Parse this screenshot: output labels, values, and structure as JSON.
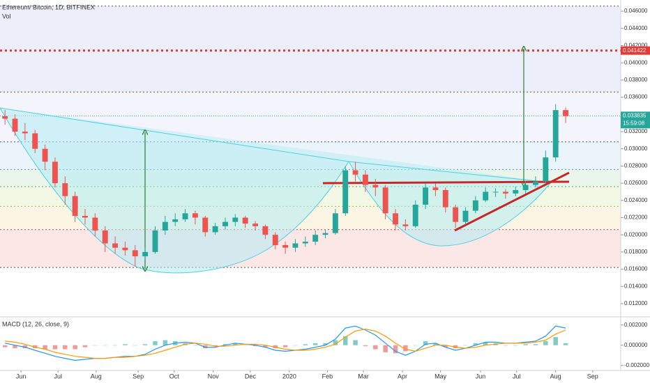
{
  "chart_data": [
    {
      "type": "candlestick",
      "title": "Ethereum/ Bitcoin, 1D, BITFINEX",
      "volume_label": "Vol",
      "open": [
        0.0338,
        0.0335,
        0.032,
        0.0318,
        0.03,
        0.0285,
        0.026,
        0.0245,
        0.0222,
        0.022,
        0.0205,
        0.019,
        0.0185,
        0.0182,
        0.0175,
        0.018,
        0.0205,
        0.0215,
        0.0218,
        0.0225,
        0.022,
        0.0203,
        0.021,
        0.0215,
        0.022,
        0.0213,
        0.021,
        0.02,
        0.0188,
        0.0185,
        0.019,
        0.0192,
        0.02,
        0.0202,
        0.0225,
        0.0275,
        0.027,
        0.0258,
        0.0255,
        0.0225,
        0.0212,
        0.021,
        0.0235,
        0.0255,
        0.0252,
        0.0232,
        0.0215,
        0.0228,
        0.024,
        0.025,
        0.025,
        0.0248,
        0.0252,
        0.0258,
        0.0262,
        0.029,
        0.0345
      ],
      "high": [
        0.0345,
        0.034,
        0.033,
        0.0322,
        0.0305,
        0.029,
        0.0268,
        0.025,
        0.023,
        0.0225,
        0.021,
        0.0198,
        0.0192,
        0.0188,
        0.0186,
        0.021,
        0.0222,
        0.0225,
        0.023,
        0.0228,
        0.0222,
        0.0214,
        0.022,
        0.0224,
        0.0222,
        0.0216,
        0.0212,
        0.0203,
        0.0192,
        0.0195,
        0.0198,
        0.0205,
        0.0206,
        0.023,
        0.028,
        0.0285,
        0.0275,
        0.0265,
        0.0258,
        0.023,
        0.0218,
        0.024,
        0.026,
        0.026,
        0.0255,
        0.0235,
        0.0232,
        0.0245,
        0.0255,
        0.0254,
        0.0253,
        0.0256,
        0.0262,
        0.0268,
        0.0298,
        0.0352,
        0.0348
      ],
      "low": [
        0.0328,
        0.0315,
        0.031,
        0.0295,
        0.0275,
        0.0255,
        0.0235,
        0.0215,
        0.0212,
        0.0198,
        0.018,
        0.0178,
        0.0176,
        0.0163,
        0.017,
        0.0178,
        0.02,
        0.021,
        0.0215,
        0.0212,
        0.0198,
        0.02,
        0.0206,
        0.021,
        0.0208,
        0.0205,
        0.0195,
        0.0183,
        0.0178,
        0.018,
        0.0186,
        0.0188,
        0.0196,
        0.02,
        0.0222,
        0.0262,
        0.025,
        0.0245,
        0.0218,
        0.0205,
        0.0205,
        0.0208,
        0.023,
        0.0245,
        0.0226,
        0.0208,
        0.0212,
        0.0225,
        0.0238,
        0.0244,
        0.0242,
        0.0245,
        0.0248,
        0.0255,
        0.026,
        0.0285,
        0.033
      ],
      "close": [
        0.0335,
        0.032,
        0.0318,
        0.03,
        0.0285,
        0.026,
        0.0245,
        0.0222,
        0.022,
        0.0205,
        0.019,
        0.0185,
        0.0182,
        0.0175,
        0.018,
        0.0205,
        0.0215,
        0.0218,
        0.0225,
        0.022,
        0.0203,
        0.021,
        0.0215,
        0.022,
        0.0213,
        0.021,
        0.02,
        0.0188,
        0.0185,
        0.019,
        0.0192,
        0.02,
        0.0202,
        0.0225,
        0.0275,
        0.027,
        0.0258,
        0.0255,
        0.0225,
        0.0212,
        0.021,
        0.0235,
        0.0255,
        0.0252,
        0.0232,
        0.0215,
        0.0228,
        0.024,
        0.025,
        0.025,
        0.0248,
        0.0252,
        0.0258,
        0.0262,
        0.029,
        0.0345,
        0.0338
      ],
      "up_color": "#26a69a",
      "down_color": "#ef5350",
      "xlim": [
        -0.5,
        61.5
      ],
      "xticks": [
        {
          "value": 1.6,
          "label": "Jun"
        },
        {
          "value": 5.3,
          "label": "Jul"
        },
        {
          "value": 9.1,
          "label": "Aug"
        },
        {
          "value": 13.3,
          "label": "Sep"
        },
        {
          "value": 16.9,
          "label": "Oct"
        },
        {
          "value": 20.8,
          "label": "Nov"
        },
        {
          "value": 24.5,
          "label": "Dec"
        },
        {
          "value": 28.4,
          "label": "2020"
        },
        {
          "value": 32.2,
          "label": "Feb"
        },
        {
          "value": 35.8,
          "label": "Mar"
        },
        {
          "value": 39.7,
          "label": "Apr"
        },
        {
          "value": 43.5,
          "label": "May"
        },
        {
          "value": 47.5,
          "label": "Jun"
        },
        {
          "value": 51.1,
          "label": "Jul"
        },
        {
          "value": 55.0,
          "label": "Aug"
        },
        {
          "value": 58.7,
          "label": "Sep"
        }
      ],
      "ylim": [
        0.0107,
        0.0469
      ],
      "yticks": [
        {
          "value": 0.046,
          "label": "0.046000"
        },
        {
          "value": 0.044,
          "label": "0.044000"
        },
        {
          "value": 0.042,
          "label": "0.042000"
        },
        {
          "value": 0.04,
          "label": "0.040000"
        },
        {
          "value": 0.038,
          "label": "0.038000"
        },
        {
          "value": 0.036,
          "label": "0.036000"
        },
        {
          "value": 0.034,
          "label": "0.034000"
        },
        {
          "value": 0.032,
          "label": "0.032000"
        },
        {
          "value": 0.03,
          "label": "0.030000"
        },
        {
          "value": 0.028,
          "label": "0.028000"
        },
        {
          "value": 0.026,
          "label": "0.026000"
        },
        {
          "value": 0.024,
          "label": "0.024000"
        },
        {
          "value": 0.022,
          "label": "0.022000"
        },
        {
          "value": 0.02,
          "label": "0.020000"
        },
        {
          "value": 0.018,
          "label": "0.018000"
        },
        {
          "value": 0.016,
          "label": "0.016000"
        },
        {
          "value": 0.014,
          "label": "0.014000"
        },
        {
          "value": 0.012,
          "label": "0.012000"
        }
      ],
      "levels": [
        {
          "value": 0.0466,
          "color": "#555555",
          "fill": "#eceefa"
        },
        {
          "value": 0.0366,
          "color": "#555555",
          "fill": "#f4f5fc"
        },
        {
          "value": 0.0308,
          "color": "#3f51b5",
          "fill": "#eaf4fa"
        },
        {
          "value": 0.0276,
          "color": "#4a90c0",
          "fill": "#eaf6ec"
        },
        {
          "value": 0.0256,
          "color": "#4caf50",
          "fill": "#f3f8e4"
        },
        {
          "value": 0.0233,
          "color": "#8bc34a",
          "fill": "#fcf5e4"
        },
        {
          "value": 0.0206,
          "color": "#e53935",
          "fill": "#fce7e7"
        },
        {
          "value": 0.0162,
          "color": "#555555",
          "fill": "#ffffff"
        }
      ],
      "target": {
        "value": 0.041422,
        "color": "#e53935"
      },
      "last_price": {
        "value": 0.033835,
        "color": "#26a69a",
        "countdown": "15:59:08"
      }
    },
    {
      "type": "macd",
      "title": "MACD (12, 26, close, 9)",
      "xlim": [
        -0.5,
        61.5
      ],
      "ylim": [
        -0.0025,
        0.0026
      ],
      "yticks": [
        {
          "value": 0.002,
          "label": "0.002000"
        },
        {
          "value": 0,
          "label": "0.000000"
        },
        {
          "value": -0.002,
          "label": "-0.002000"
        }
      ],
      "histogram": {
        "up_color": "#80cbc4",
        "down_color": "#ef9a9a",
        "values": [
          -0.0002,
          -0.0003,
          -0.0003,
          -0.0003,
          -0.0004,
          -0.0004,
          -0.0004,
          -0.0004,
          -0.0002,
          0.0,
          0.0,
          0.0,
          0.0001,
          0.0,
          0.0001,
          0.0004,
          0.0005,
          0.0004,
          0.0002,
          0.0,
          -0.0003,
          -0.0001,
          0.0001,
          0.0002,
          0.0,
          -0.0001,
          -0.0002,
          -0.0003,
          -0.0002,
          0.0,
          0.0001,
          0.0002,
          0.0002,
          0.0005,
          0.0009,
          0.0005,
          -0.0001,
          -0.0004,
          -0.0007,
          -0.0008,
          -0.0006,
          0.0,
          0.0004,
          0.0002,
          -0.0002,
          -0.0003,
          0.0,
          0.0002,
          0.0003,
          0.0002,
          0.0,
          0.0,
          0.0001,
          0.0001,
          0.0004,
          0.0008,
          0.0002
        ]
      },
      "series": [
        {
          "color": "#2196f3",
          "values": [
            0.0002,
            0.0,
            -0.0002,
            -0.0005,
            -0.0008,
            -0.0011,
            -0.0013,
            -0.0015,
            -0.0014,
            -0.0013,
            -0.0013,
            -0.0012,
            -0.0011,
            -0.0011,
            -0.0009,
            -0.0004,
            0.0,
            0.0002,
            0.0003,
            0.0002,
            -0.0002,
            -0.0002,
            0.0,
            0.0002,
            0.0001,
            0.0,
            -0.0002,
            -0.0005,
            -0.0006,
            -0.0005,
            -0.0004,
            -0.0002,
            0.0,
            0.0006,
            0.0017,
            0.0019,
            0.0015,
            0.001,
            0.0002,
            -0.0006,
            -0.001,
            -0.0006,
            0.0001,
            0.0002,
            -0.0002,
            -0.0005,
            -0.0003,
            0.0,
            0.0003,
            0.0003,
            0.0002,
            0.0002,
            0.0003,
            0.0004,
            0.0009,
            0.0019,
            0.0017
          ]
        },
        {
          "color": "#ff9800",
          "values": [
            0.0004,
            0.0003,
            0.0001,
            -0.0002,
            -0.0004,
            -0.0007,
            -0.0009,
            -0.0011,
            -0.0012,
            -0.0013,
            -0.0013,
            -0.0012,
            -0.0012,
            -0.0011,
            -0.001,
            -0.0008,
            -0.0005,
            -0.0002,
            0.0001,
            0.0002,
            0.0001,
            -0.0001,
            -0.0001,
            0.0,
            0.0001,
            0.0001,
            0.0,
            -0.0002,
            -0.0004,
            -0.0005,
            -0.0005,
            -0.0004,
            -0.0002,
            0.0001,
            0.0008,
            0.0014,
            0.0016,
            0.0014,
            0.0009,
            0.0002,
            -0.0004,
            -0.0006,
            -0.0003,
            0.0,
            0.0,
            -0.0002,
            -0.0003,
            -0.0002,
            0.0,
            0.0001,
            0.0002,
            0.0002,
            0.0002,
            0.0003,
            0.0005,
            0.0011,
            0.0015
          ]
        }
      ]
    }
  ]
}
